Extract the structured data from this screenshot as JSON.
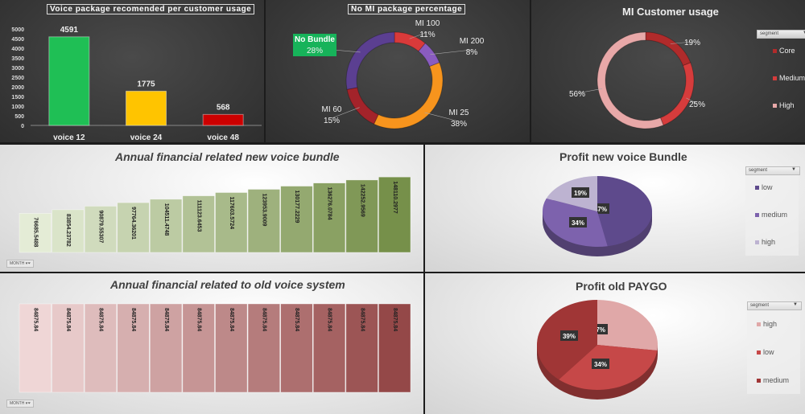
{
  "chart_data": [
    {
      "type": "bar",
      "title": "Voice package recomended per customer usage",
      "categories": [
        "voice 12",
        "voice 24",
        "voice 48"
      ],
      "values": [
        4591,
        1775,
        568
      ],
      "colors": [
        "#1fbf55",
        "#ffc400",
        "#cc0000"
      ],
      "ylim": [
        0,
        5000
      ],
      "yticks": [
        0,
        500,
        1000,
        1500,
        2000,
        2500,
        3000,
        3500,
        4000,
        4500,
        5000
      ],
      "grid": false
    },
    {
      "type": "pie",
      "subtype": "donut",
      "title": "No MI package percentage",
      "slices": [
        {
          "label": "MI 100",
          "value": 11,
          "display": "11%",
          "color": "#d93a3a"
        },
        {
          "label": "MI 200",
          "value": 8,
          "display": "8%",
          "color": "#8a5cc0"
        },
        {
          "label": "MI 25",
          "value": 38,
          "display": "38%",
          "color": "#f7941d"
        },
        {
          "label": "MI 60",
          "value": 15,
          "display": "15%",
          "color": "#a3232a"
        },
        {
          "label": "No Bundle",
          "value": 28,
          "display": "28%",
          "color": "#5b3f91"
        }
      ],
      "highlight": {
        "label": "No Bundle",
        "color": "#17b35a"
      }
    },
    {
      "type": "pie",
      "subtype": "donut",
      "title": "MI Customer usage",
      "slices": [
        {
          "label": "Core",
          "value": 19,
          "display": "19%",
          "color": "#b02b2b"
        },
        {
          "label": "Medium",
          "value": 25,
          "display": "25%",
          "color": "#d63c3c"
        },
        {
          "label": "High",
          "value": 56,
          "display": "56%",
          "color": "#e8a8a8"
        }
      ],
      "legend": "right",
      "filter": "segment"
    },
    {
      "type": "bar",
      "title": "Annual financial related new voice bundle",
      "values": [
        76685.5488,
        83854.23782,
        90879.55307,
        97764.36201,
        104511.4748,
        111123.6453,
        117603.5724,
        123953.9009,
        130177.2229,
        136276.0784,
        142252.9569,
        148110.2977
      ],
      "labels": [
        "76685.5488",
        "83854.23782",
        "90879.55307",
        "97764.36201",
        "104511.4748",
        "111123.6453",
        "117603.5724",
        "123953.9009",
        "130177.2229",
        "136276.0784",
        "142252.9569",
        "148110.2977"
      ],
      "ylim": [
        0,
        150000
      ],
      "color_from": "#e4ecd6",
      "color_to": "#76904a",
      "filter": "MONTH"
    },
    {
      "type": "bar",
      "title": "Annual financial related to old voice system",
      "values": [
        84875.84,
        84875.84,
        84875.84,
        84875.84,
        84875.84,
        84875.84,
        84875.84,
        84875.84,
        84875.84,
        84875.84,
        84875.84,
        84875.84
      ],
      "labels": [
        "84875.84",
        "84875.84",
        "84875.84",
        "84875.84",
        "84875.84",
        "84875.84",
        "84875.84",
        "84875.84",
        "84875.84",
        "84875.84",
        "84875.84",
        "84875.84"
      ],
      "ylim": [
        0,
        84875.84
      ],
      "color_from": "#efd6d6",
      "color_to": "#944848",
      "filter": "MONTH"
    },
    {
      "type": "pie",
      "subtype": "3d",
      "title": "Profit new voice Bundle",
      "slices": [
        {
          "label": "low",
          "value": 47,
          "display": "47%",
          "color": "#5e4a8c"
        },
        {
          "label": "medium",
          "value": 34,
          "display": "34%",
          "color": "#7d62ad"
        },
        {
          "label": "high",
          "value": 19,
          "display": "19%",
          "color": "#bdb3d1"
        }
      ],
      "legend": "right",
      "filter": "segment"
    },
    {
      "type": "pie",
      "subtype": "3d",
      "title": "Profit old PAYGO",
      "slices": [
        {
          "label": "high",
          "value": 27,
          "display": "27%",
          "color": "#e0a8a8"
        },
        {
          "label": "low",
          "value": 34,
          "display": "34%",
          "color": "#c64848"
        },
        {
          "label": "medium",
          "value": 39,
          "display": "39%",
          "color": "#a03636"
        }
      ],
      "legend": "right",
      "filter": "segment"
    }
  ]
}
